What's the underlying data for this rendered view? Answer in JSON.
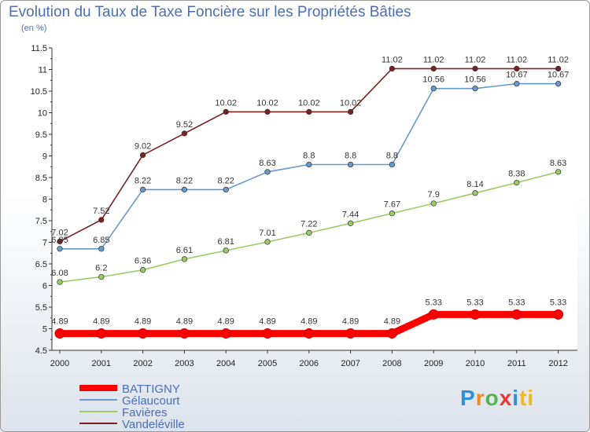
{
  "title": "Evolution du Taux de Taxe Foncière sur les Propriétés Bâties",
  "subtitle": "(en %)",
  "logo": [
    "P",
    "r",
    "o",
    "x",
    "i",
    "ti"
  ],
  "chart_data": {
    "type": "line",
    "x": [
      "2000",
      "2001",
      "2002",
      "2003",
      "2004",
      "2005",
      "2006",
      "2007",
      "2008",
      "2009",
      "2010",
      "2011",
      "2012"
    ],
    "ylim": [
      4.5,
      11.5
    ],
    "yticks": [
      "4.5",
      "5",
      "5.5",
      "6",
      "6.5",
      "7",
      "7.5",
      "8",
      "8.5",
      "9",
      "9.5",
      "10",
      "10.5",
      "11",
      "11.5"
    ],
    "grid": false,
    "legend_position": "bottom-left",
    "series": [
      {
        "name": "BATTIGNY",
        "color": "#ff0000",
        "values": [
          4.89,
          4.89,
          4.89,
          4.89,
          4.89,
          4.89,
          4.89,
          4.89,
          4.89,
          5.33,
          5.33,
          5.33,
          5.33
        ],
        "labels": [
          "4.89",
          "4.89",
          "4.89",
          "4.89",
          "4.89",
          "4.89",
          "4.89",
          "4.89",
          "4.89",
          "5.33",
          "5.33",
          "5.33",
          "5.33"
        ]
      },
      {
        "name": "Gélaucourt",
        "color": "#6699cc",
        "values": [
          6.85,
          6.85,
          8.22,
          8.22,
          8.22,
          8.63,
          8.8,
          8.8,
          8.8,
          10.56,
          10.56,
          10.67,
          10.67
        ],
        "labels": [
          "6.85",
          "6.85",
          "8.22",
          "8.22",
          "8.22",
          "8.63",
          "8.8",
          "8.8",
          "8.8",
          "10.56",
          "10.56",
          "10.67",
          "10.67"
        ]
      },
      {
        "name": "Favières",
        "color": "#99cc66",
        "values": [
          6.08,
          6.2,
          6.36,
          6.61,
          6.81,
          7.01,
          7.22,
          7.44,
          7.67,
          7.9,
          8.14,
          8.38,
          8.63
        ],
        "labels": [
          "6.08",
          "6.2",
          "6.36",
          "6.61",
          "6.81",
          "7.01",
          "7.22",
          "7.44",
          "7.67",
          "7.9",
          "8.14",
          "8.38",
          "8.63"
        ]
      },
      {
        "name": "Vandeléville",
        "color": "#7a2222",
        "values": [
          7.02,
          7.52,
          9.02,
          9.52,
          10.02,
          10.02,
          10.02,
          10.02,
          11.02,
          11.02,
          11.02,
          11.02,
          11.02
        ],
        "labels": [
          "7.02",
          "7.52",
          "9.02",
          "9.52",
          "10.02",
          "10.02",
          "10.02",
          "10.02",
          "11.02",
          "11.02",
          "11.02",
          "11.02",
          "11.02"
        ]
      }
    ]
  }
}
